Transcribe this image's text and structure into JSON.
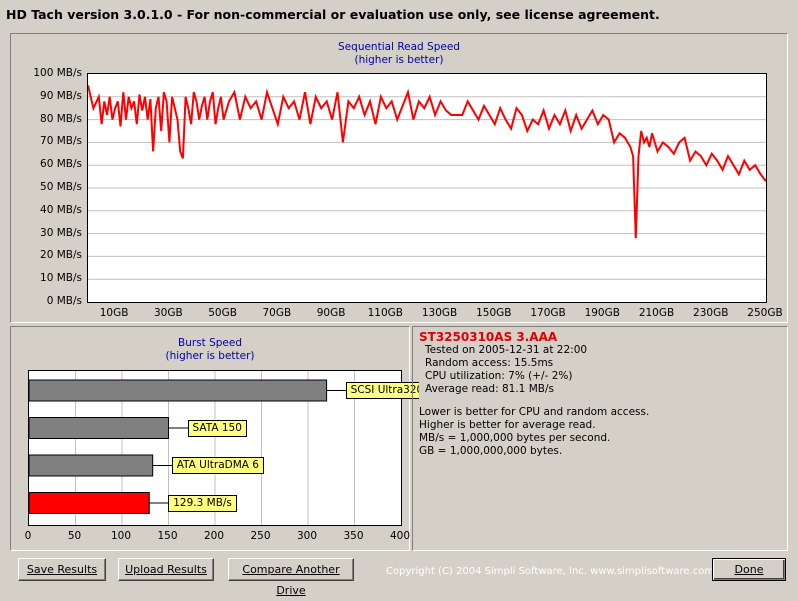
{
  "window": {
    "title": "HD Tach version 3.0.1.0  - For non-commercial or evaluation use only, see license agreement."
  },
  "seq_chart": {
    "title": "Sequential Read Speed",
    "subtitle": "(higher is better)",
    "y_ticks": [
      "100 MB/s",
      "90 MB/s",
      "80 MB/s",
      "70 MB/s",
      "60 MB/s",
      "50 MB/s",
      "40 MB/s",
      "30 MB/s",
      "20 MB/s",
      "10 MB/s",
      "0 MB/s"
    ],
    "x_ticks": [
      "10GB",
      "30GB",
      "50GB",
      "70GB",
      "90GB",
      "110GB",
      "130GB",
      "150GB",
      "170GB",
      "190GB",
      "210GB",
      "230GB",
      "250GB"
    ],
    "line_color": "#ff0000"
  },
  "burst_chart": {
    "title": "Burst Speed",
    "subtitle": "(higher is better)",
    "x_ticks": [
      "0",
      "50",
      "100",
      "150",
      "200",
      "250",
      "300",
      "350",
      "400"
    ],
    "bars": [
      {
        "label": "SCSI Ultra320",
        "value": 320,
        "color": "#808080"
      },
      {
        "label": "SATA 150",
        "value": 150,
        "color": "#808080"
      },
      {
        "label": "ATA UltraDMA 6",
        "value": 133,
        "color": "#808080"
      },
      {
        "label": "129.3 MB/s",
        "value": 129.3,
        "color": "#ff0000"
      }
    ]
  },
  "info": {
    "drive": "ST3250310AS 3.AAA",
    "tested": "Tested on 2005-12-31 at 22:00",
    "random": "Random access: 15.5ms",
    "cpu": "CPU utilization: 7% (+/- 2%)",
    "avg": "Average read: 81.1 MB/s",
    "note1": "Lower is better for CPU and random access.",
    "note2": "Higher is better for average read.",
    "note3": "MB/s = 1,000,000 bytes per second.",
    "note4": "GB = 1,000,000,000 bytes."
  },
  "buttons": {
    "save": "Save Results",
    "upload": "Upload Results",
    "compare": "Compare Another Drive",
    "done": "Done"
  },
  "copyright": "Copyright (C) 2004 Simpli Software, Inc. www.simplisoftware.com",
  "chart_data": [
    {
      "type": "line",
      "title": "Sequential Read Speed",
      "subtitle": "(higher is better)",
      "xlabel": "",
      "ylabel": "",
      "xlim": [
        0,
        250
      ],
      "ylim": [
        0,
        100
      ],
      "series": [
        {
          "x": [
            0,
            2,
            4,
            5,
            6,
            7,
            8,
            9,
            10,
            11,
            12,
            13,
            14,
            15,
            16,
            17,
            18,
            19,
            20,
            21,
            22,
            23,
            24,
            25,
            26,
            27,
            28,
            29,
            30,
            31,
            32,
            33,
            34,
            35,
            36,
            37,
            38,
            39,
            40,
            41,
            42,
            43,
            44,
            45,
            46,
            47,
            48,
            49,
            50,
            52,
            54,
            56,
            58,
            60,
            62,
            64,
            66,
            68,
            70,
            72,
            74,
            76,
            78,
            80,
            82,
            84,
            86,
            88,
            90,
            92,
            94,
            96,
            98,
            100,
            102,
            104,
            106,
            108,
            110,
            112,
            114,
            116,
            118,
            120,
            122,
            124,
            126,
            128,
            130,
            132,
            134,
            136,
            138,
            140,
            142,
            144,
            146,
            148,
            150,
            152,
            154,
            156,
            158,
            160,
            162,
            164,
            166,
            168,
            170,
            172,
            174,
            176,
            178,
            180,
            182,
            184,
            186,
            188,
            190,
            192,
            194,
            196,
            198,
            200,
            201,
            202,
            203,
            204,
            205,
            206,
            207,
            208,
            210,
            212,
            214,
            216,
            218,
            220,
            222,
            224,
            226,
            228,
            230,
            232,
            234,
            236,
            238,
            240,
            242,
            244,
            246,
            248,
            250
          ],
          "values": [
            95,
            85,
            90,
            78,
            88,
            82,
            90,
            80,
            85,
            88,
            77,
            92,
            80,
            90,
            85,
            88,
            78,
            91,
            84,
            90,
            80,
            89,
            66,
            85,
            90,
            75,
            92,
            88,
            70,
            90,
            85,
            80,
            66,
            63,
            90,
            85,
            78,
            92,
            88,
            80,
            86,
            90,
            80,
            88,
            92,
            78,
            85,
            90,
            80,
            88,
            92,
            80,
            90,
            85,
            88,
            80,
            92,
            85,
            78,
            90,
            85,
            88,
            80,
            92,
            78,
            90,
            85,
            88,
            80,
            92,
            70,
            88,
            85,
            90,
            82,
            88,
            78,
            90,
            85,
            88,
            80,
            86,
            92,
            80,
            88,
            85,
            90,
            82,
            88,
            84,
            82,
            82,
            82,
            88,
            84,
            80,
            86,
            82,
            78,
            85,
            80,
            76,
            85,
            82,
            75,
            80,
            78,
            84,
            76,
            82,
            78,
            84,
            75,
            82,
            76,
            80,
            84,
            78,
            82,
            80,
            70,
            74,
            72,
            68,
            64,
            28,
            64,
            75,
            70,
            72,
            68,
            74,
            66,
            70,
            68,
            65,
            70,
            72,
            62,
            66,
            64,
            60,
            65,
            62,
            58,
            64,
            60,
            56,
            62,
            58,
            60,
            56,
            53
          ]
        }
      ]
    },
    {
      "type": "bar",
      "title": "Burst Speed",
      "subtitle": "(higher is better)",
      "orientation": "horizontal",
      "categories": [
        "SCSI Ultra320",
        "SATA 150",
        "ATA UltraDMA 6",
        "129.3 MB/s"
      ],
      "values": [
        320,
        150,
        133,
        129.3
      ],
      "xlim": [
        0,
        400
      ]
    }
  ]
}
